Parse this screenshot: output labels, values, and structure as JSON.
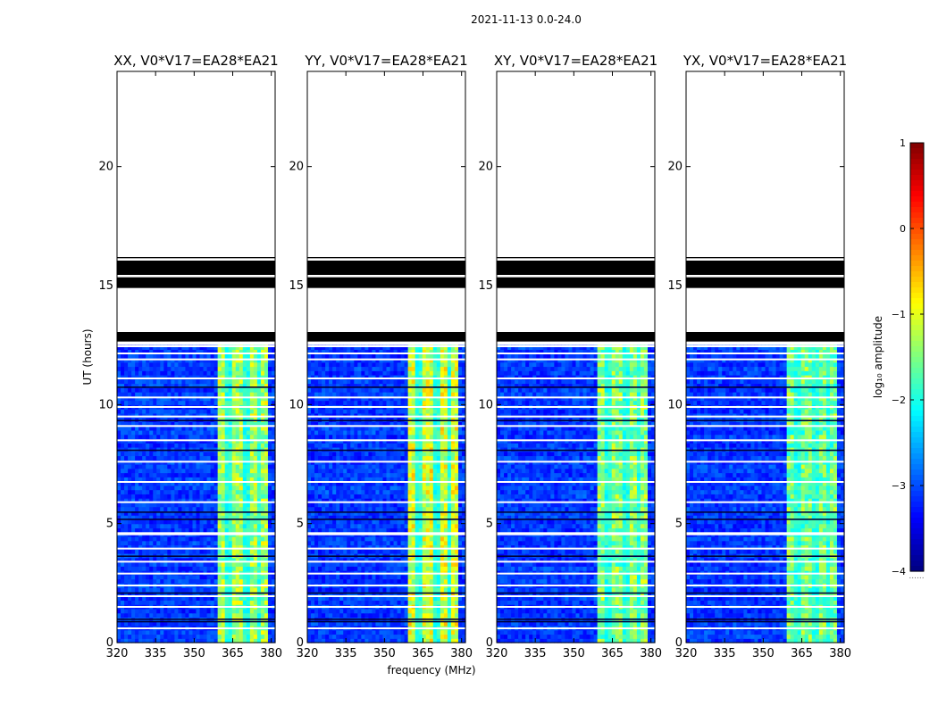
{
  "figure_title": "2021-11-13 0.0-24.0",
  "colors": {
    "background": "#ffffff",
    "flag": "#000000",
    "frame": "#000000",
    "colormap": [
      "#00007f",
      "#0000ff",
      "#007fff",
      "#00ffff",
      "#7fff7f",
      "#ffff00",
      "#ff7f00",
      "#ff0000",
      "#7f0000"
    ]
  },
  "chart_data": [
    {
      "type": "heatmap",
      "title": "XX, V0*V17=EA28*EA21",
      "xlabel": "",
      "ylabel": "UT (hours)",
      "xlim": [
        320,
        381.5
      ],
      "ylim": [
        0,
        24
      ],
      "xticks": [
        320,
        335,
        350,
        365,
        380
      ],
      "yticks": [
        0,
        5,
        10,
        15,
        20
      ],
      "background_log_amplitude": -3.1,
      "band_log_amplitude": -1.4
    },
    {
      "type": "heatmap",
      "title": "YY, V0*V17=EA28*EA21",
      "xlabel": "frequency (MHz)",
      "ylabel": "",
      "xlim": [
        320,
        381.5
      ],
      "ylim": [
        0,
        24
      ],
      "xticks": [
        320,
        335,
        350,
        365,
        380
      ],
      "yticks": [
        0,
        5,
        10,
        15,
        20
      ],
      "background_log_amplitude": -3.1,
      "band_log_amplitude": -1.1
    },
    {
      "type": "heatmap",
      "title": "XY, V0*V17=EA28*EA21",
      "xlabel": "",
      "ylabel": "",
      "xlim": [
        320,
        381.5
      ],
      "ylim": [
        0,
        24
      ],
      "xticks": [
        320,
        335,
        350,
        365,
        380
      ],
      "yticks": [
        0,
        5,
        10,
        15,
        20
      ],
      "background_log_amplitude": -3.1,
      "band_log_amplitude": -1.5
    },
    {
      "type": "heatmap",
      "title": "YX, V0*V17=EA28*EA21",
      "xlabel": "",
      "ylabel": "",
      "xlim": [
        320,
        381.5
      ],
      "ylim": [
        0,
        24
      ],
      "xticks": [
        320,
        335,
        350,
        365,
        380
      ],
      "yticks": [
        0,
        5,
        10,
        15,
        20
      ],
      "background_log_amplitude": -3.1,
      "band_log_amplitude": -1.6
    }
  ],
  "shared": {
    "band_mhz": [
      359.5,
      378.5
    ],
    "band_gaps_mhz": [
      363.5,
      370.5,
      375.0
    ],
    "data_ut_range": [
      0,
      12.5
    ],
    "white_gaps_ut": [
      0.6,
      1.5,
      1.95,
      2.4,
      2.9,
      3.4,
      3.95,
      4.55,
      4.6,
      5.9,
      6.75,
      7.6,
      8.5,
      9.1,
      9.5,
      9.9,
      10.3,
      11.1,
      11.9,
      12.15,
      12.45
    ],
    "black_flag_ut": [
      [
        12.65,
        13.05
      ],
      [
        14.9,
        15.35
      ],
      [
        15.45,
        16.05
      ],
      [
        16.15,
        16.2
      ]
    ],
    "dark_flag_ut": [
      0.85,
      0.95,
      2.05,
      3.6,
      5.15,
      5.45,
      8.05,
      9.3,
      10.7
    ]
  },
  "colorbar": {
    "label": "log₁₀ amplitude",
    "range": [
      -4,
      1
    ],
    "ticks": [
      "1",
      "0",
      "−1",
      "−2",
      "−3",
      "−4"
    ],
    "tick_values": [
      1,
      0,
      -1,
      -2,
      -3,
      -4
    ],
    "note": "......"
  }
}
